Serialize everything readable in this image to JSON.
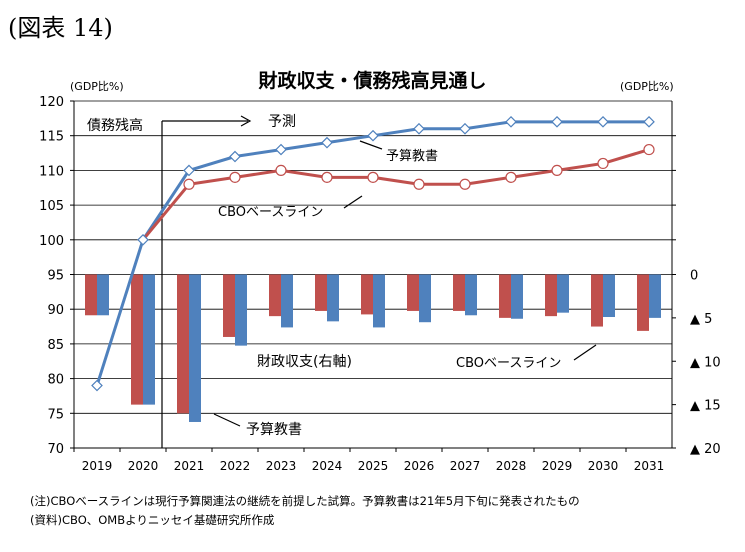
{
  "figure_label": "(図表 14)",
  "notes": {
    "line1": "(注)CBOベースラインは現行予算関連法の継続を前提した試算。予算教書は21年5月下旬に発表されたもの",
    "line2": "(資料)CBO、OMBよりニッセイ基礎研究所作成"
  },
  "chart_data": {
    "type": "bar+line",
    "title": "財政収支・債務残高見通し",
    "left_unit": "(GDP比%)",
    "right_unit": "(GDP比%)",
    "categories": [
      "2019",
      "2020",
      "2021",
      "2022",
      "2023",
      "2024",
      "2025",
      "2026",
      "2027",
      "2028",
      "2029",
      "2030",
      "2031"
    ],
    "left_axis": {
      "min": 70,
      "max": 120,
      "ticks": [
        "70",
        "75",
        "80",
        "85",
        "90",
        "95",
        "100",
        "105",
        "110",
        "115",
        "120"
      ]
    },
    "right_axis": {
      "min": 0,
      "max": 20,
      "inverted": true,
      "ticks": [
        "0",
        "▲ 5",
        "▲ 10",
        "▲ 15",
        "▲ 20"
      ]
    },
    "colors": {
      "cbo": "#c0504d",
      "budget": "#4f81bd",
      "grid": "#000000"
    },
    "line_series": [
      {
        "key": "budget",
        "values": [
          79,
          100,
          110,
          112,
          113,
          114,
          115,
          116,
          116,
          117,
          117,
          117,
          117
        ]
      },
      {
        "key": "cbo",
        "values": [
          null,
          null,
          108,
          109,
          110,
          109,
          109,
          108,
          108,
          109,
          110,
          111,
          113
        ]
      }
    ],
    "bar_series": [
      {
        "key": "cbo",
        "values": [
          4.7,
          15.0,
          16.0,
          7.2,
          4.8,
          4.2,
          4.6,
          4.2,
          4.2,
          5.0,
          4.8,
          6.0,
          6.5
        ]
      },
      {
        "key": "budget",
        "values": [
          4.7,
          15.0,
          17.0,
          8.2,
          6.1,
          5.4,
          6.1,
          5.5,
          4.7,
          5.1,
          4.4,
          4.9,
          5.0
        ]
      }
    ],
    "annotations": {
      "debt_label": "債務残高",
      "forecast_label": "予測",
      "budget_line_label": "予算教書",
      "cbo_line_label": "CBOベースライン",
      "balance_label": "財政収支(右軸)",
      "cbo_bar_label": "CBOベースライン",
      "budget_bar_label": "予算教書"
    }
  }
}
